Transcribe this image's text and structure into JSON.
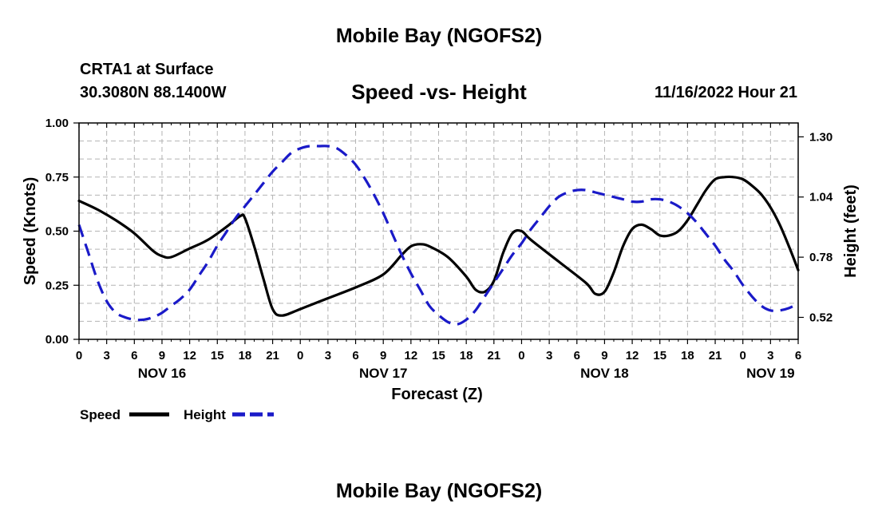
{
  "page": {
    "title": "Mobile Bay (NGOFS2)",
    "bottom_title": "Mobile Bay (NGOFS2)"
  },
  "station": {
    "name": "CRTA1 at Surface",
    "coords": "30.3080N  88.1400W"
  },
  "header": {
    "chart_title": "Speed -vs- Height",
    "timestamp": "11/16/2022 Hour 21"
  },
  "colors": {
    "speed": "#000000",
    "height": "#1a1ac8",
    "grid": "#b4b4b4"
  },
  "chart_data": {
    "type": "line",
    "title": "Speed -vs- Height",
    "xlabel": "Forecast (Z)",
    "ylabel": "Speed (Knots)",
    "y2label": "Height (feet)",
    "xlim": [
      0,
      78
    ],
    "ylim": [
      0,
      1.0
    ],
    "y2lim": [
      0.425,
      1.36
    ],
    "x_ticks": [
      0,
      3,
      6,
      9,
      12,
      15,
      18,
      21,
      24,
      27,
      30,
      33,
      36,
      39,
      42,
      45,
      48,
      51,
      54,
      57,
      60,
      63,
      66,
      69,
      72,
      75,
      78
    ],
    "x_tick_labels": [
      "0",
      "3",
      "6",
      "9",
      "12",
      "15",
      "18",
      "21",
      "0",
      "3",
      "6",
      "9",
      "12",
      "15",
      "18",
      "21",
      "0",
      "3",
      "6",
      "9",
      "12",
      "15",
      "18",
      "21",
      "0",
      "3",
      "6"
    ],
    "day_labels": [
      {
        "x": 9,
        "label": "NOV 16"
      },
      {
        "x": 33,
        "label": "NOV 17"
      },
      {
        "x": 57,
        "label": "NOV 18"
      },
      {
        "x": 75,
        "label": "NOV 19"
      }
    ],
    "y_ticks": [
      0.0,
      0.25,
      0.5,
      0.75,
      1.0
    ],
    "y_tick_labels": [
      "0.00",
      "0.25",
      "0.50",
      "0.75",
      "1.00"
    ],
    "y2_ticks": [
      0.52,
      0.78,
      1.04,
      1.3
    ],
    "y2_tick_labels": [
      "0.52",
      "0.78",
      "1.04",
      "1.30"
    ],
    "grid": true,
    "legend_location": "bottom-left",
    "series": [
      {
        "name": "Speed",
        "axis": "left",
        "style": "solid",
        "x": [
          0,
          2,
          4,
          6,
          8,
          9,
          10,
          12,
          14,
          16,
          17.5,
          18,
          19,
          20,
          21,
          22,
          24,
          27,
          30,
          33,
          35,
          36,
          37,
          38,
          40,
          42,
          43,
          44,
          45,
          46,
          47,
          48,
          49,
          52,
          55,
          56,
          57,
          58,
          59,
          60,
          61,
          62,
          63,
          64,
          65,
          66,
          67,
          68,
          69,
          70,
          71,
          72,
          73,
          74,
          75,
          76,
          77,
          78
        ],
        "values": [
          0.64,
          0.6,
          0.55,
          0.49,
          0.41,
          0.385,
          0.38,
          0.42,
          0.46,
          0.52,
          0.57,
          0.56,
          0.43,
          0.28,
          0.14,
          0.11,
          0.14,
          0.19,
          0.24,
          0.3,
          0.39,
          0.43,
          0.44,
          0.43,
          0.38,
          0.29,
          0.23,
          0.22,
          0.27,
          0.4,
          0.49,
          0.5,
          0.46,
          0.36,
          0.26,
          0.21,
          0.22,
          0.31,
          0.43,
          0.51,
          0.53,
          0.51,
          0.48,
          0.48,
          0.5,
          0.55,
          0.62,
          0.69,
          0.74,
          0.75,
          0.75,
          0.74,
          0.71,
          0.67,
          0.61,
          0.53,
          0.43,
          0.32
        ]
      },
      {
        "name": "Height",
        "axis": "right",
        "style": "dashed",
        "x": [
          0,
          1,
          2,
          3,
          4,
          5,
          6,
          7,
          8,
          9,
          10,
          11,
          12,
          13,
          14,
          15,
          16,
          17,
          18,
          19,
          20,
          21,
          22,
          23,
          24,
          25,
          26,
          27,
          28,
          29,
          30,
          31,
          32,
          33,
          34,
          35,
          36,
          37,
          38,
          39,
          40,
          41,
          42,
          43,
          44,
          45,
          46,
          47,
          48,
          49,
          50,
          51,
          52,
          53,
          54,
          55,
          56,
          57,
          58,
          59,
          60,
          61,
          62,
          63,
          64,
          65,
          66,
          67,
          68,
          69,
          70,
          71,
          72,
          73,
          74,
          75,
          76,
          77,
          78
        ],
        "values": [
          0.92,
          0.8,
          0.68,
          0.59,
          0.54,
          0.52,
          0.51,
          0.51,
          0.52,
          0.54,
          0.57,
          0.6,
          0.64,
          0.7,
          0.76,
          0.83,
          0.89,
          0.95,
          1.0,
          1.05,
          1.1,
          1.15,
          1.19,
          1.23,
          1.25,
          1.26,
          1.26,
          1.26,
          1.25,
          1.22,
          1.18,
          1.12,
          1.05,
          0.97,
          0.88,
          0.79,
          0.71,
          0.64,
          0.57,
          0.53,
          0.5,
          0.49,
          0.51,
          0.55,
          0.61,
          0.67,
          0.73,
          0.79,
          0.84,
          0.9,
          0.95,
          1.0,
          1.04,
          1.06,
          1.07,
          1.07,
          1.06,
          1.05,
          1.04,
          1.03,
          1.02,
          1.02,
          1.03,
          1.03,
          1.02,
          1.0,
          0.97,
          0.93,
          0.88,
          0.83,
          0.77,
          0.72,
          0.66,
          0.61,
          0.57,
          0.55,
          0.55,
          0.56,
          0.58
        ]
      }
    ]
  }
}
